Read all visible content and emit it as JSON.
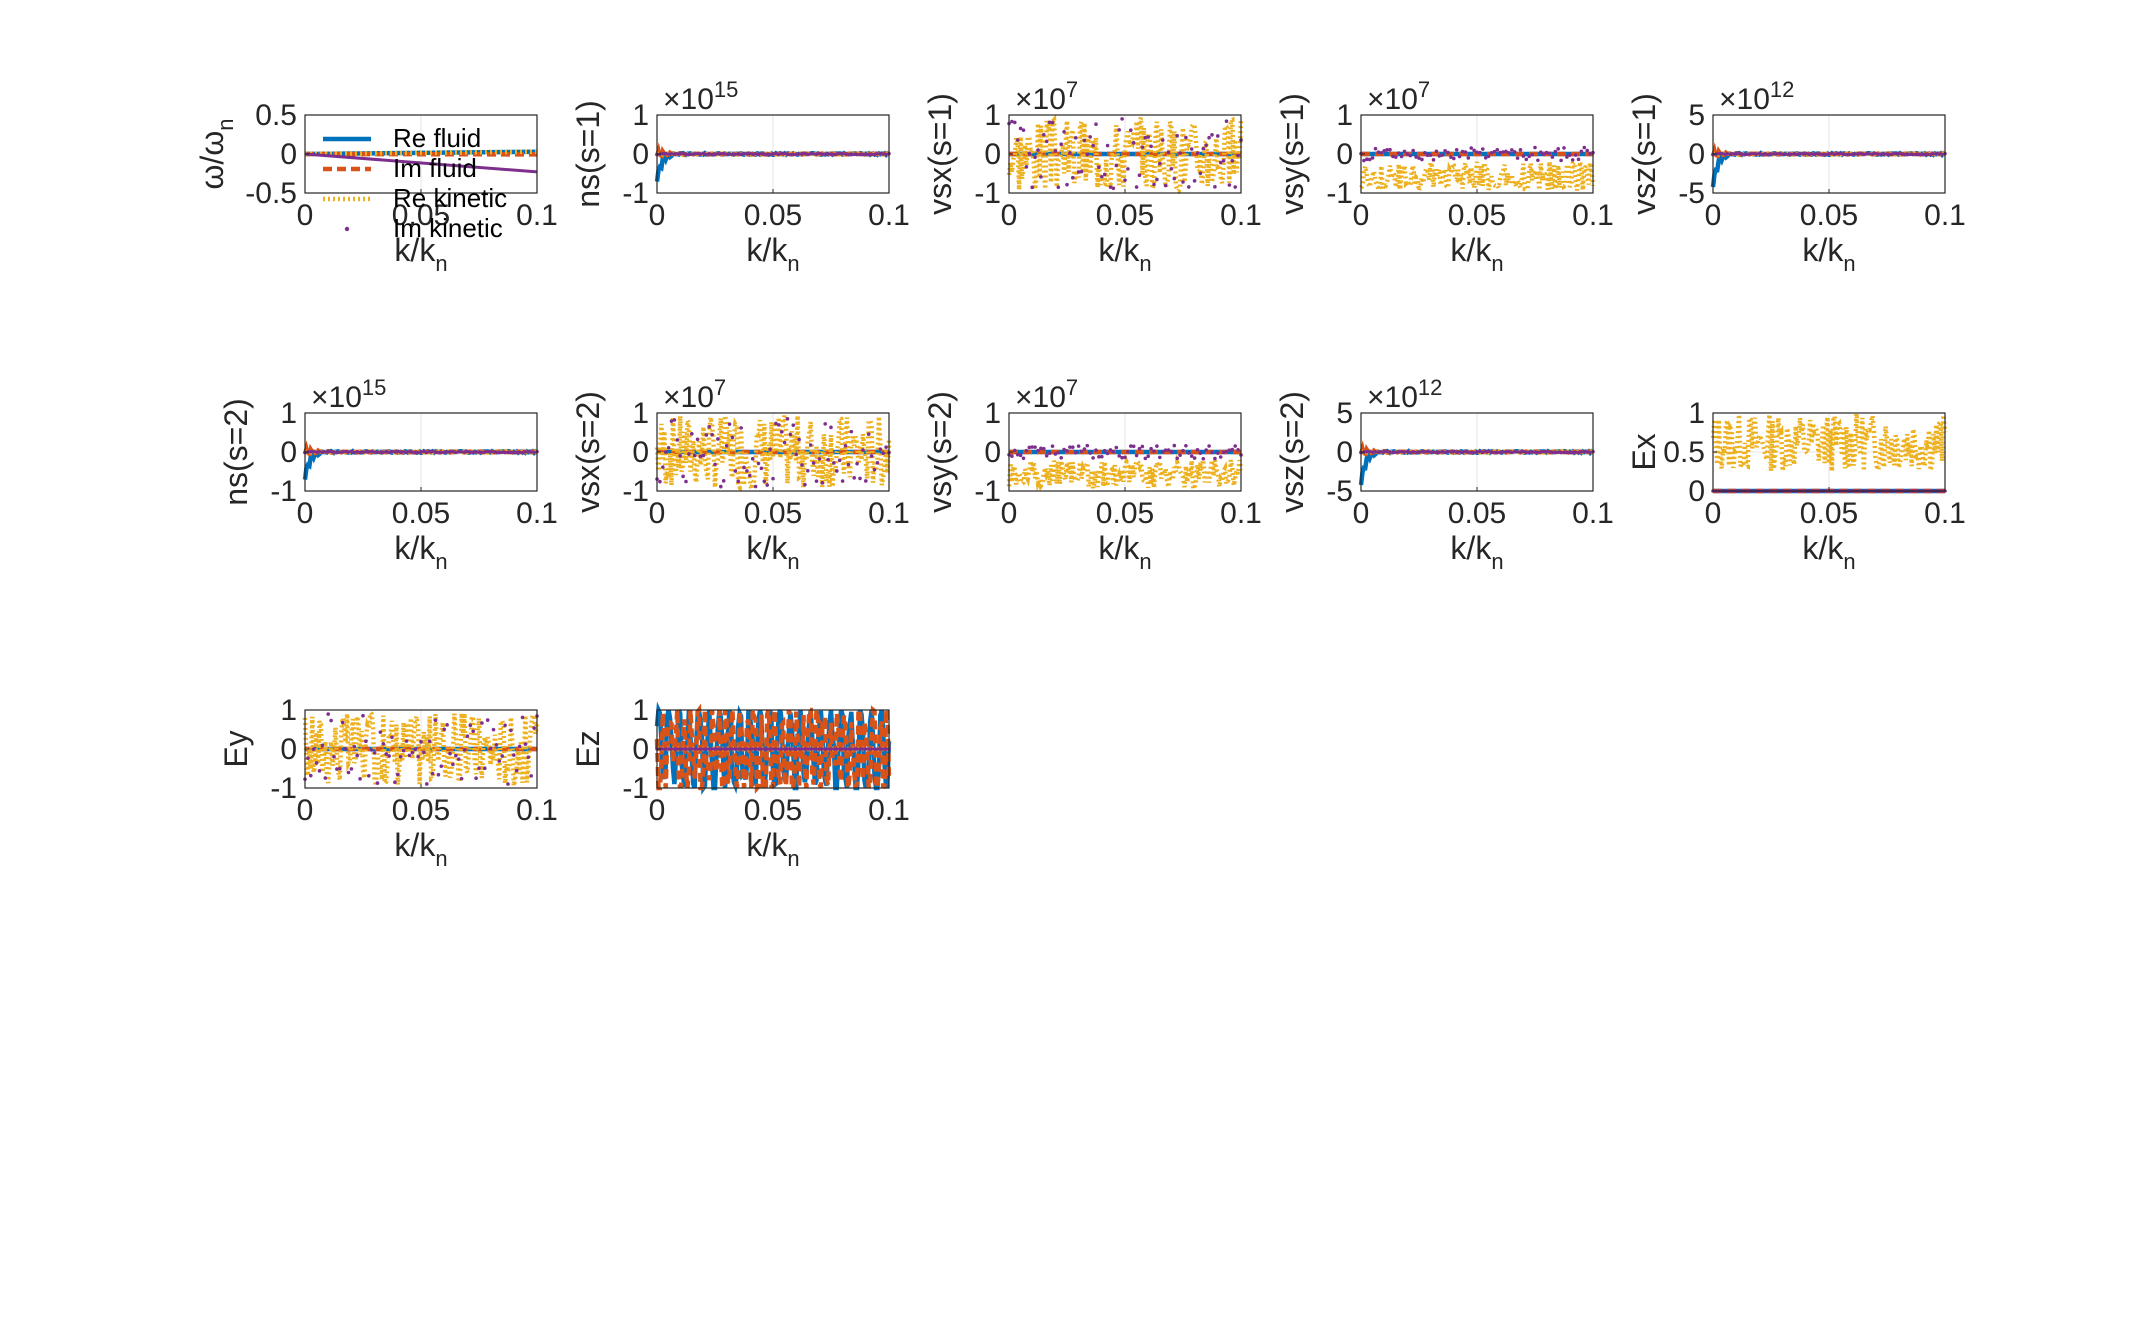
{
  "colors": {
    "re_fluid": "#0072BD",
    "im_fluid": "#D95319",
    "re_kinetic": "#EDB120",
    "im_kinetic": "#7E2F8E",
    "grid": "#e6e6e6",
    "axis": "#262626"
  },
  "legend": {
    "items": [
      "Re fluid",
      "Im fluid",
      "Re kinetic",
      "Im kinetic"
    ],
    "placement": "top-left of first panel"
  },
  "chart_data": [
    {
      "type": "line",
      "ylabel": "ω/ω",
      "ylabel_sub": "n",
      "xlabel": "k/k",
      "xlabel_sub": "n",
      "xlim": [
        0,
        0.1
      ],
      "ylim": [
        -0.5,
        0.5
      ],
      "xticks": [
        "0",
        "0.05",
        "0.1"
      ],
      "yticks": [
        "-0.5",
        "0",
        "0.5"
      ],
      "exponent": "",
      "pattern": "dispersion",
      "has_legend": true,
      "series": [
        {
          "name": "Re fluid",
          "x": [
            0,
            0.1
          ],
          "y": [
            0,
            0.03
          ]
        },
        {
          "name": "Im fluid",
          "x": [
            0,
            0.1
          ],
          "y": [
            0,
            -0.005
          ]
        },
        {
          "name": "Re kinetic",
          "x": [
            0,
            0.1
          ],
          "y": [
            0,
            0.03
          ]
        },
        {
          "name": "Im kinetic",
          "x": [
            0,
            0.1
          ],
          "y": [
            0,
            -0.23
          ]
        }
      ]
    },
    {
      "type": "line",
      "ylabel": "ns(s=1)",
      "xlabel": "k/k",
      "xlabel_sub": "n",
      "xlim": [
        0,
        0.1
      ],
      "ylim": [
        -1,
        1
      ],
      "xticks": [
        "0",
        "0.05",
        "0.1"
      ],
      "yticks": [
        "-1",
        "0",
        "1"
      ],
      "exponent": "15",
      "pattern": "spike",
      "spike_peak": -0.72
    },
    {
      "type": "line",
      "ylabel": "vsx(s=1)",
      "xlabel": "k/k",
      "xlabel_sub": "n",
      "xlim": [
        0,
        0.1
      ],
      "ylim": [
        -1,
        1
      ],
      "xticks": [
        "0",
        "0.05",
        "0.1"
      ],
      "yticks": [
        "-1",
        "0",
        "1"
      ],
      "exponent": "7",
      "pattern": "noisy_full",
      "seed": 3
    },
    {
      "type": "line",
      "ylabel": "vsy(s=1)",
      "xlabel": "k/k",
      "xlabel_sub": "n",
      "xlim": [
        0,
        0.1
      ],
      "ylim": [
        -1,
        1
      ],
      "xticks": [
        "0",
        "0.05",
        "0.1"
      ],
      "yticks": [
        "-1",
        "0",
        "1"
      ],
      "exponent": "7",
      "pattern": "noisy_low",
      "seed": 5
    },
    {
      "type": "line",
      "ylabel": "vsz(s=1)",
      "xlabel": "k/k",
      "xlabel_sub": "n",
      "xlim": [
        0,
        0.1
      ],
      "ylim": [
        -5,
        5
      ],
      "xticks": [
        "0",
        "0.05",
        "0.1"
      ],
      "yticks": [
        "-5",
        "0",
        "5"
      ],
      "exponent": "12",
      "pattern": "spike",
      "spike_peak": -4.3
    },
    {
      "type": "line",
      "ylabel": "ns(s=2)",
      "xlabel": "k/k",
      "xlabel_sub": "n",
      "xlim": [
        0,
        0.1
      ],
      "ylim": [
        -1,
        1
      ],
      "xticks": [
        "0",
        "0.05",
        "0.1"
      ],
      "yticks": [
        "-1",
        "0",
        "1"
      ],
      "exponent": "15",
      "pattern": "spike",
      "spike_peak": -0.72
    },
    {
      "type": "line",
      "ylabel": "vsx(s=2)",
      "xlabel": "k/k",
      "xlabel_sub": "n",
      "xlim": [
        0,
        0.1
      ],
      "ylim": [
        -1,
        1
      ],
      "xticks": [
        "0",
        "0.05",
        "0.1"
      ],
      "yticks": [
        "-1",
        "0",
        "1"
      ],
      "exponent": "7",
      "pattern": "noisy_full",
      "seed": 7
    },
    {
      "type": "line",
      "ylabel": "vsy(s=2)",
      "xlabel": "k/k",
      "xlabel_sub": "n",
      "xlim": [
        0,
        0.1
      ],
      "ylim": [
        -1,
        1
      ],
      "xticks": [
        "0",
        "0.05",
        "0.1"
      ],
      "yticks": [
        "-1",
        "0",
        "1"
      ],
      "exponent": "7",
      "pattern": "noisy_low",
      "seed": 11
    },
    {
      "type": "line",
      "ylabel": "vsz(s=2)",
      "xlabel": "k/k",
      "xlabel_sub": "n",
      "xlim": [
        0,
        0.1
      ],
      "ylim": [
        -5,
        5
      ],
      "xticks": [
        "0",
        "0.05",
        "0.1"
      ],
      "yticks": [
        "-5",
        "0",
        "5"
      ],
      "exponent": "12",
      "pattern": "spike",
      "spike_peak": -4.3
    },
    {
      "type": "line",
      "ylabel": "Ex",
      "xlabel": "k/k",
      "xlabel_sub": "n",
      "xlim": [
        0,
        0.1
      ],
      "ylim": [
        0,
        1
      ],
      "xticks": [
        "0",
        "0.05",
        "0.1"
      ],
      "yticks": [
        "0",
        "0.5",
        "1"
      ],
      "exponent": "",
      "pattern": "noisy_pos",
      "seed": 13
    },
    {
      "type": "line",
      "ylabel": "Ey",
      "xlabel": "k/k",
      "xlabel_sub": "n",
      "xlim": [
        0,
        0.1
      ],
      "ylim": [
        -1,
        1
      ],
      "xticks": [
        "0",
        "0.05",
        "0.1"
      ],
      "yticks": [
        "-1",
        "0",
        "1"
      ],
      "exponent": "",
      "pattern": "noisy_full",
      "seed": 17
    },
    {
      "type": "line",
      "ylabel": "Ez",
      "xlabel": "k/k",
      "xlabel_sub": "n",
      "xlim": [
        0,
        0.1
      ],
      "ylim": [
        -1,
        1
      ],
      "xticks": [
        "0",
        "0.05",
        "0.1"
      ],
      "yticks": [
        "-1",
        "0",
        "1"
      ],
      "exponent": "",
      "pattern": "fluid_osc",
      "seed": 19
    }
  ]
}
